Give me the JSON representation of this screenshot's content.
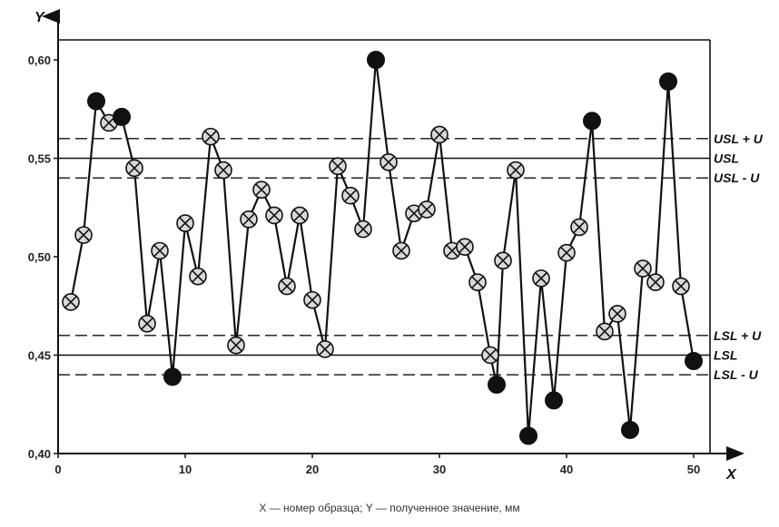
{
  "chart_data": {
    "type": "scatter",
    "xlabel": "X",
    "ylabel": "Y",
    "xlim": [
      0,
      60
    ],
    "ylim": [
      0.4,
      0.6
    ],
    "x_ticks": [
      "0",
      "10",
      "20",
      "30",
      "40",
      "50"
    ],
    "y_ticks": [
      "0,40",
      "0,45",
      "0,50",
      "0,55",
      "0,60"
    ],
    "points": [
      {
        "x": 1,
        "y": 0.477,
        "marker": "crossed"
      },
      {
        "x": 2,
        "y": 0.511,
        "marker": "crossed"
      },
      {
        "x": 3,
        "y": 0.579,
        "marker": "filled"
      },
      {
        "x": 4,
        "y": 0.568,
        "marker": "crossed"
      },
      {
        "x": 5,
        "y": 0.571,
        "marker": "filled"
      },
      {
        "x": 6,
        "y": 0.545,
        "marker": "crossed"
      },
      {
        "x": 7,
        "y": 0.466,
        "marker": "crossed"
      },
      {
        "x": 8,
        "y": 0.503,
        "marker": "crossed"
      },
      {
        "x": 9,
        "y": 0.439,
        "marker": "filled"
      },
      {
        "x": 10,
        "y": 0.517,
        "marker": "crossed"
      },
      {
        "x": 11,
        "y": 0.49,
        "marker": "crossed"
      },
      {
        "x": 12,
        "y": 0.561,
        "marker": "crossed"
      },
      {
        "x": 13,
        "y": 0.544,
        "marker": "crossed"
      },
      {
        "x": 14,
        "y": 0.455,
        "marker": "crossed"
      },
      {
        "x": 15,
        "y": 0.519,
        "marker": "crossed"
      },
      {
        "x": 16,
        "y": 0.534,
        "marker": "crossed"
      },
      {
        "x": 17,
        "y": 0.521,
        "marker": "crossed"
      },
      {
        "x": 18,
        "y": 0.485,
        "marker": "crossed"
      },
      {
        "x": 19,
        "y": 0.521,
        "marker": "crossed"
      },
      {
        "x": 20,
        "y": 0.478,
        "marker": "crossed"
      },
      {
        "x": 21,
        "y": 0.453,
        "marker": "crossed"
      },
      {
        "x": 22,
        "y": 0.546,
        "marker": "crossed"
      },
      {
        "x": 23,
        "y": 0.531,
        "marker": "crossed"
      },
      {
        "x": 24,
        "y": 0.514,
        "marker": "crossed"
      },
      {
        "x": 25,
        "y": 0.6,
        "marker": "filled"
      },
      {
        "x": 26,
        "y": 0.548,
        "marker": "crossed"
      },
      {
        "x": 27,
        "y": 0.503,
        "marker": "crossed"
      },
      {
        "x": 28,
        "y": 0.522,
        "marker": "crossed"
      },
      {
        "x": 29,
        "y": 0.524,
        "marker": "crossed"
      },
      {
        "x": 30,
        "y": 0.562,
        "marker": "crossed"
      },
      {
        "x": 31,
        "y": 0.503,
        "marker": "crossed"
      },
      {
        "x": 32,
        "y": 0.505,
        "marker": "crossed"
      },
      {
        "x": 33,
        "y": 0.487,
        "marker": "crossed"
      },
      {
        "x": 34,
        "y": 0.45,
        "marker": "crossed"
      },
      {
        "x": 34.5,
        "y": 0.435,
        "marker": "filled"
      },
      {
        "x": 35,
        "y": 0.498,
        "marker": "crossed"
      },
      {
        "x": 36,
        "y": 0.544,
        "marker": "crossed"
      },
      {
        "x": 37,
        "y": 0.409,
        "marker": "filled"
      },
      {
        "x": 38,
        "y": 0.489,
        "marker": "crossed"
      },
      {
        "x": 39,
        "y": 0.427,
        "marker": "filled"
      },
      {
        "x": 40,
        "y": 0.502,
        "marker": "crossed"
      },
      {
        "x": 41,
        "y": 0.515,
        "marker": "crossed"
      },
      {
        "x": 42,
        "y": 0.569,
        "marker": "filled"
      },
      {
        "x": 43,
        "y": 0.462,
        "marker": "crossed"
      },
      {
        "x": 44,
        "y": 0.471,
        "marker": "crossed"
      },
      {
        "x": 45,
        "y": 0.412,
        "marker": "filled"
      },
      {
        "x": 46,
        "y": 0.494,
        "marker": "crossed"
      },
      {
        "x": 47,
        "y": 0.487,
        "marker": "crossed"
      },
      {
        "x": 48,
        "y": 0.589,
        "marker": "filled"
      },
      {
        "x": 49,
        "y": 0.485,
        "marker": "crossed"
      },
      {
        "x": 50,
        "y": 0.447,
        "marker": "filled"
      }
    ],
    "reference_lines": [
      {
        "label": "USL + U",
        "y": 0.56,
        "style": "dashed"
      },
      {
        "label": "USL",
        "y": 0.55,
        "style": "solid"
      },
      {
        "label": "USL - U",
        "y": 0.54,
        "style": "dashed"
      },
      {
        "label": "LSL + U",
        "y": 0.46,
        "style": "dashed"
      },
      {
        "label": "LSL",
        "y": 0.45,
        "style": "solid"
      },
      {
        "label": "LSL - U",
        "y": 0.44,
        "style": "dashed"
      }
    ],
    "grid": false
  },
  "caption": "X — номер образца; Y — полученное значение, мм"
}
